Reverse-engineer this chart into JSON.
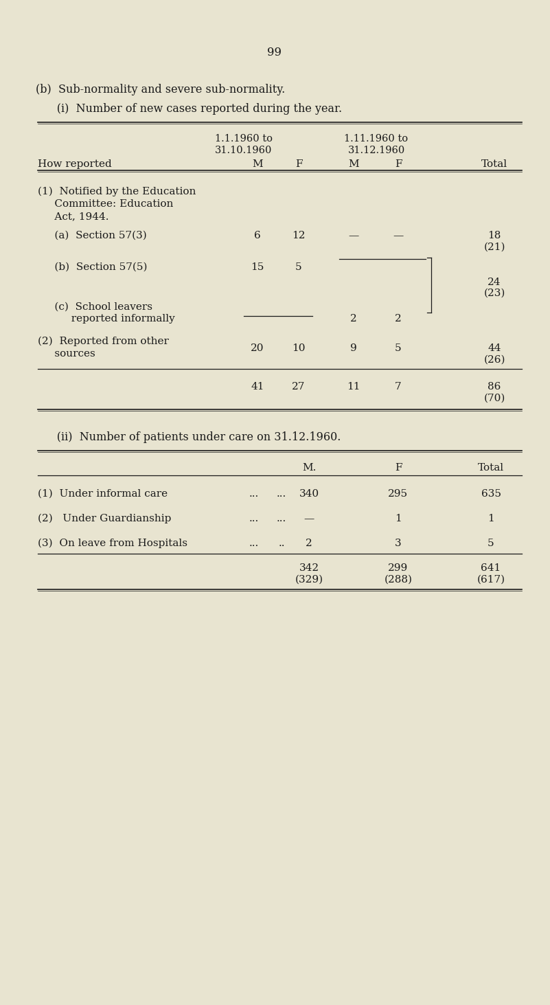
{
  "bg_color": "#e8e4d0",
  "text_color": "#1a1a1a",
  "page_number": "99",
  "title_b": "(b)  Sub-normality and severe sub-normality.",
  "title_i": "      (i)  Number of new cases reported during the year.",
  "title_ii": "      (ii)  Number of patients under care on 31.12.1960.",
  "col_header_period1_line1": "1.1.1960 to",
  "col_header_period1_line2": "31.10.1960",
  "col_header_period2_line1": "1.11.1960 to",
  "col_header_period2_line2": "31.12.1960",
  "col_header_row_label": "How reported",
  "col_header_M1": "M",
  "col_header_F1": "F",
  "col_header_M2": "M",
  "col_header_F2": "F",
  "col_header_Total": "Total",
  "table2_col_M": "M.",
  "table2_col_F": "F",
  "table2_col_Total": "Total"
}
